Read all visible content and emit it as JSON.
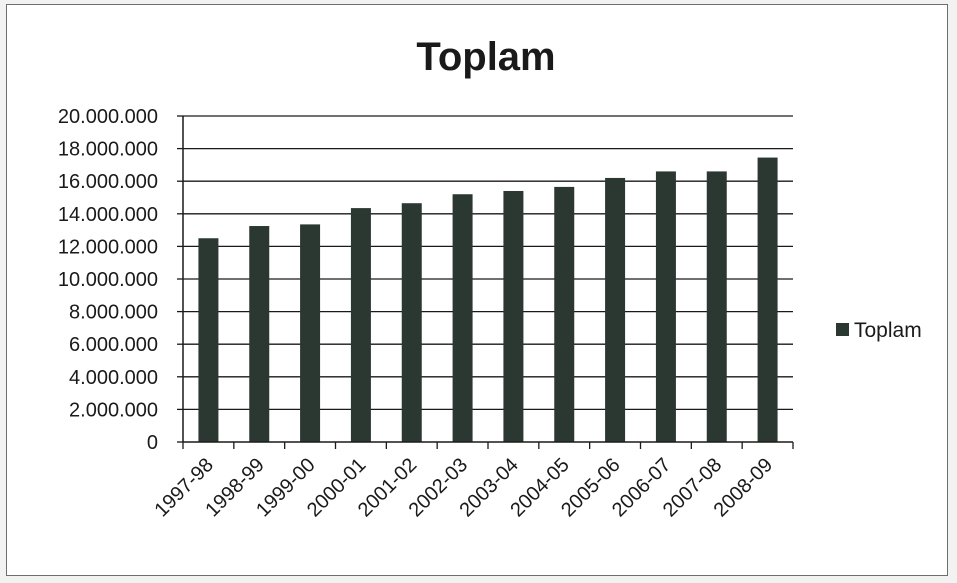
{
  "chart_data": {
    "type": "bar",
    "title": "Toplam",
    "xlabel": "",
    "ylabel": "",
    "categories": [
      "1997-98",
      "1998-99",
      "1999-00",
      "2000-01",
      "2001-02",
      "2002-03",
      "2003-04",
      "2004-05",
      "2005-06",
      "2006-07",
      "2007-08",
      "2008-09"
    ],
    "series": [
      {
        "name": "Toplam",
        "values": [
          12500000,
          13250000,
          13350000,
          14350000,
          14650000,
          15200000,
          15400000,
          15650000,
          16200000,
          16600000,
          16600000,
          17450000
        ],
        "color": "#2b3832"
      }
    ],
    "ylim": [
      0,
      20000000
    ],
    "yticks": [
      "0",
      "2.000.000",
      "4.000.000",
      "6.000.000",
      "8.000.000",
      "10.000.000",
      "12.000.000",
      "14.000.000",
      "16.000.000",
      "18.000.000",
      "20.000.000"
    ],
    "grid": true,
    "legend_position": "right"
  }
}
